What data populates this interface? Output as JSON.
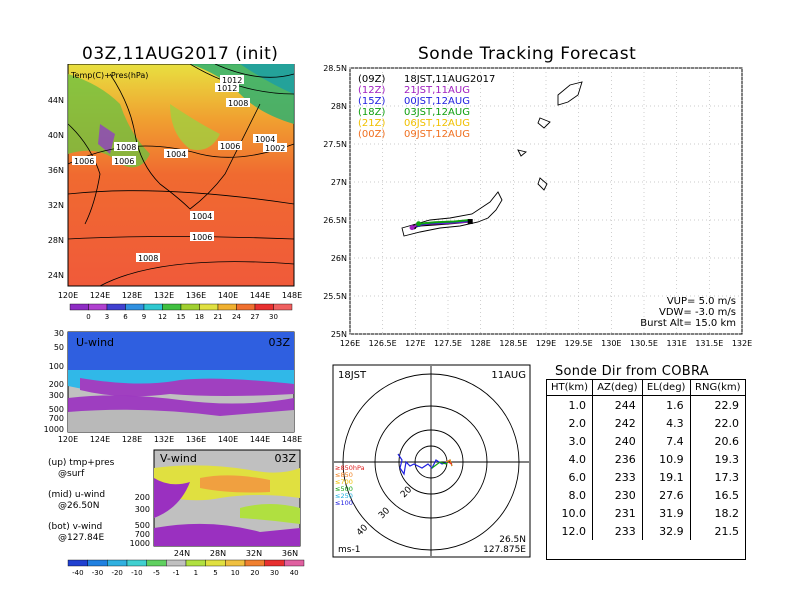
{
  "map_panel": {
    "title": "03Z,11AUG2017 (init)",
    "legend_label": "Temp(C)+Pres(hPa)",
    "lat_labels": [
      "44N",
      "40N",
      "36N",
      "32N",
      "28N",
      "24N"
    ],
    "lon_labels": [
      "120E",
      "124E",
      "128E",
      "132E",
      "136E",
      "140E",
      "144E",
      "148E"
    ],
    "isobar_labels": [
      "1012",
      "1012",
      "1008",
      "1008",
      "1006",
      "1006",
      "1004",
      "1006",
      "1004",
      "1002",
      "1004",
      "1006",
      "1008"
    ],
    "colorbar": {
      "ticks": [
        "0",
        "3",
        "6",
        "9",
        "12",
        "15",
        "18",
        "21",
        "24",
        "27",
        "30"
      ],
      "colors": [
        "#8e2cc4",
        "#b040d0",
        "#4040d0",
        "#3090e0",
        "#30c8d0",
        "#40c040",
        "#a0d030",
        "#e0e040",
        "#f0b030",
        "#f07030",
        "#e83030",
        "#f06060"
      ]
    }
  },
  "u_panel": {
    "label": "U-wind",
    "time": "03Z",
    "y_labels": [
      "30",
      "50",
      "100",
      "200",
      "300",
      "500",
      "700",
      "1000"
    ],
    "x_labels": [
      "120E",
      "124E",
      "128E",
      "132E",
      "136E",
      "140E",
      "144E",
      "148E"
    ]
  },
  "v_panel": {
    "label": "V-wind",
    "time": "03Z",
    "y_labels": [
      "200",
      "300",
      "500",
      "700",
      "1000"
    ],
    "x_labels": [
      "24N",
      "28N",
      "32N",
      "36N"
    ],
    "colorbar": {
      "ticks": [
        "-40",
        "-30",
        "-20",
        "-10",
        "-5",
        "-1",
        "1",
        "5",
        "10",
        "20",
        "30",
        "40"
      ],
      "colors": [
        "#2040d0",
        "#2080e0",
        "#30b0e0",
        "#40d0d0",
        "#60d060",
        "#c0c0c0",
        "#b0e040",
        "#e0e040",
        "#f0c040",
        "#f08030",
        "#e83030",
        "#e060a0"
      ]
    }
  },
  "panel_notes": {
    "up": "(up) tmp+pres",
    "up2": "@surf",
    "mid": "(mid) u-wind",
    "mid2": "@26.50N",
    "bot": "(bot) v-wind",
    "bot2": "@127.84E"
  },
  "tracking": {
    "title": "Sonde Tracking Forecast",
    "lat_labels": [
      "28.5N",
      "28N",
      "27.5N",
      "27N",
      "26.5N",
      "26N",
      "25.5N",
      "25N"
    ],
    "lon_labels": [
      "126E",
      "126.5E",
      "127E",
      "127.5E",
      "128E",
      "128.5E",
      "129E",
      "129.5E",
      "130E",
      "130.5E",
      "131E",
      "131.5E",
      "132E"
    ],
    "legend": [
      {
        "code": "(09Z)",
        "text": "18JST,11AUG2017",
        "color": "#000000"
      },
      {
        "code": "(12Z)",
        "text": "21JST,11AUG",
        "color": "#a020c0"
      },
      {
        "code": "(15Z)",
        "text": "00JST,12AUG",
        "color": "#2020e0"
      },
      {
        "code": "(18Z)",
        "text": "03JST,12AUG",
        "color": "#10a010"
      },
      {
        "code": "(21Z)",
        "text": "06JST,12AUG",
        "color": "#f0c000"
      },
      {
        "code": "(00Z)",
        "text": "09JST,12AUG",
        "color": "#f07020"
      }
    ],
    "params": {
      "vup": "VUP= 5.0 m/s",
      "vdw": "VDW= -3.0 m/s",
      "burst": "Burst Alt= 15.0 km"
    }
  },
  "hodograph": {
    "time_left": "18JST",
    "time_right": "11AUG",
    "units": "ms-1",
    "lat": "26.5N",
    "lon": "127.875E",
    "ring_labels": [
      "20",
      "30",
      "40"
    ],
    "level_legend": [
      {
        "text": "≥850hPa",
        "color": "#e02020"
      },
      {
        "text": "≤850",
        "color": "#f08020"
      },
      {
        "text": "≤700",
        "color": "#f0c000"
      },
      {
        "text": "≤500",
        "color": "#10a010"
      },
      {
        "text": "≤250",
        "color": "#20b0e0"
      },
      {
        "text": "≤100",
        "color": "#2020e0"
      }
    ]
  },
  "sonde_table": {
    "title": "Sonde Dir from COBRA",
    "headers": [
      "HT(km)",
      "AZ(deg)",
      "EL(deg)",
      "RNG(km)"
    ],
    "rows": [
      [
        "1.0",
        "244",
        "1.6",
        "22.9"
      ],
      [
        "2.0",
        "242",
        "4.3",
        "22.0"
      ],
      [
        "3.0",
        "240",
        "7.4",
        "20.6"
      ],
      [
        "4.0",
        "236",
        "10.9",
        "19.3"
      ],
      [
        "6.0",
        "233",
        "19.1",
        "17.3"
      ],
      [
        "8.0",
        "230",
        "27.6",
        "16.5"
      ],
      [
        "10.0",
        "231",
        "31.9",
        "18.2"
      ],
      [
        "12.0",
        "233",
        "32.9",
        "21.5"
      ]
    ]
  },
  "chart_data": [
    {
      "type": "line",
      "title": "Sonde Tracking Forecast",
      "xlabel": "",
      "ylabel": "",
      "xlim": [
        126,
        132
      ],
      "ylim": [
        25,
        28.5
      ],
      "series": [
        {
          "name": "18JST,11AUG2017",
          "x": [
            127.84,
            127.6,
            127.3,
            127.1,
            126.98
          ],
          "y": [
            26.48,
            26.46,
            26.44,
            26.43,
            26.41
          ]
        },
        {
          "name": "21JST,11AUG",
          "x": [
            127.84,
            127.5,
            127.2,
            127.02,
            126.95
          ],
          "y": [
            26.48,
            26.46,
            26.45,
            26.43,
            26.4
          ]
        },
        {
          "name": "00JST,12AUG",
          "x": [
            127.84,
            127.55,
            127.25,
            127.05
          ],
          "y": [
            26.49,
            26.47,
            26.46,
            26.44
          ]
        },
        {
          "name": "03JST,12AUG",
          "x": [
            127.84,
            127.6,
            127.3,
            127.05
          ],
          "y": [
            26.5,
            26.48,
            26.47,
            26.45
          ]
        }
      ]
    },
    {
      "type": "table",
      "title": "Sonde Dir from COBRA",
      "columns": [
        "HT(km)",
        "AZ(deg)",
        "EL(deg)",
        "RNG(km)"
      ],
      "rows": [
        [
          1.0,
          244,
          1.6,
          22.9
        ],
        [
          2.0,
          242,
          4.3,
          22.0
        ],
        [
          3.0,
          240,
          7.4,
          20.6
        ],
        [
          4.0,
          236,
          10.9,
          19.3
        ],
        [
          6.0,
          233,
          19.1,
          17.3
        ],
        [
          8.0,
          230,
          27.6,
          16.5
        ],
        [
          10.0,
          231,
          31.9,
          18.2
        ],
        [
          12.0,
          233,
          32.9,
          21.5
        ]
      ]
    }
  ]
}
